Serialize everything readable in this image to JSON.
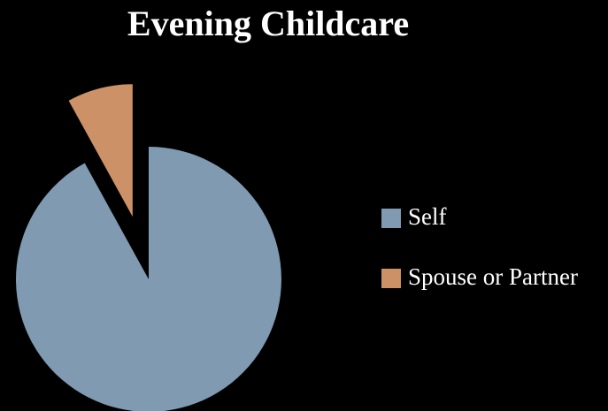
{
  "chart_data": {
    "type": "pie",
    "title": "Evening Childcare",
    "series": [
      {
        "name": "Self",
        "color": "#7f9ab1",
        "values": [
          92
        ]
      },
      {
        "name": "Spouse or Partner",
        "color": "#cd9167",
        "values": [
          8
        ]
      }
    ],
    "legend": "right"
  }
}
